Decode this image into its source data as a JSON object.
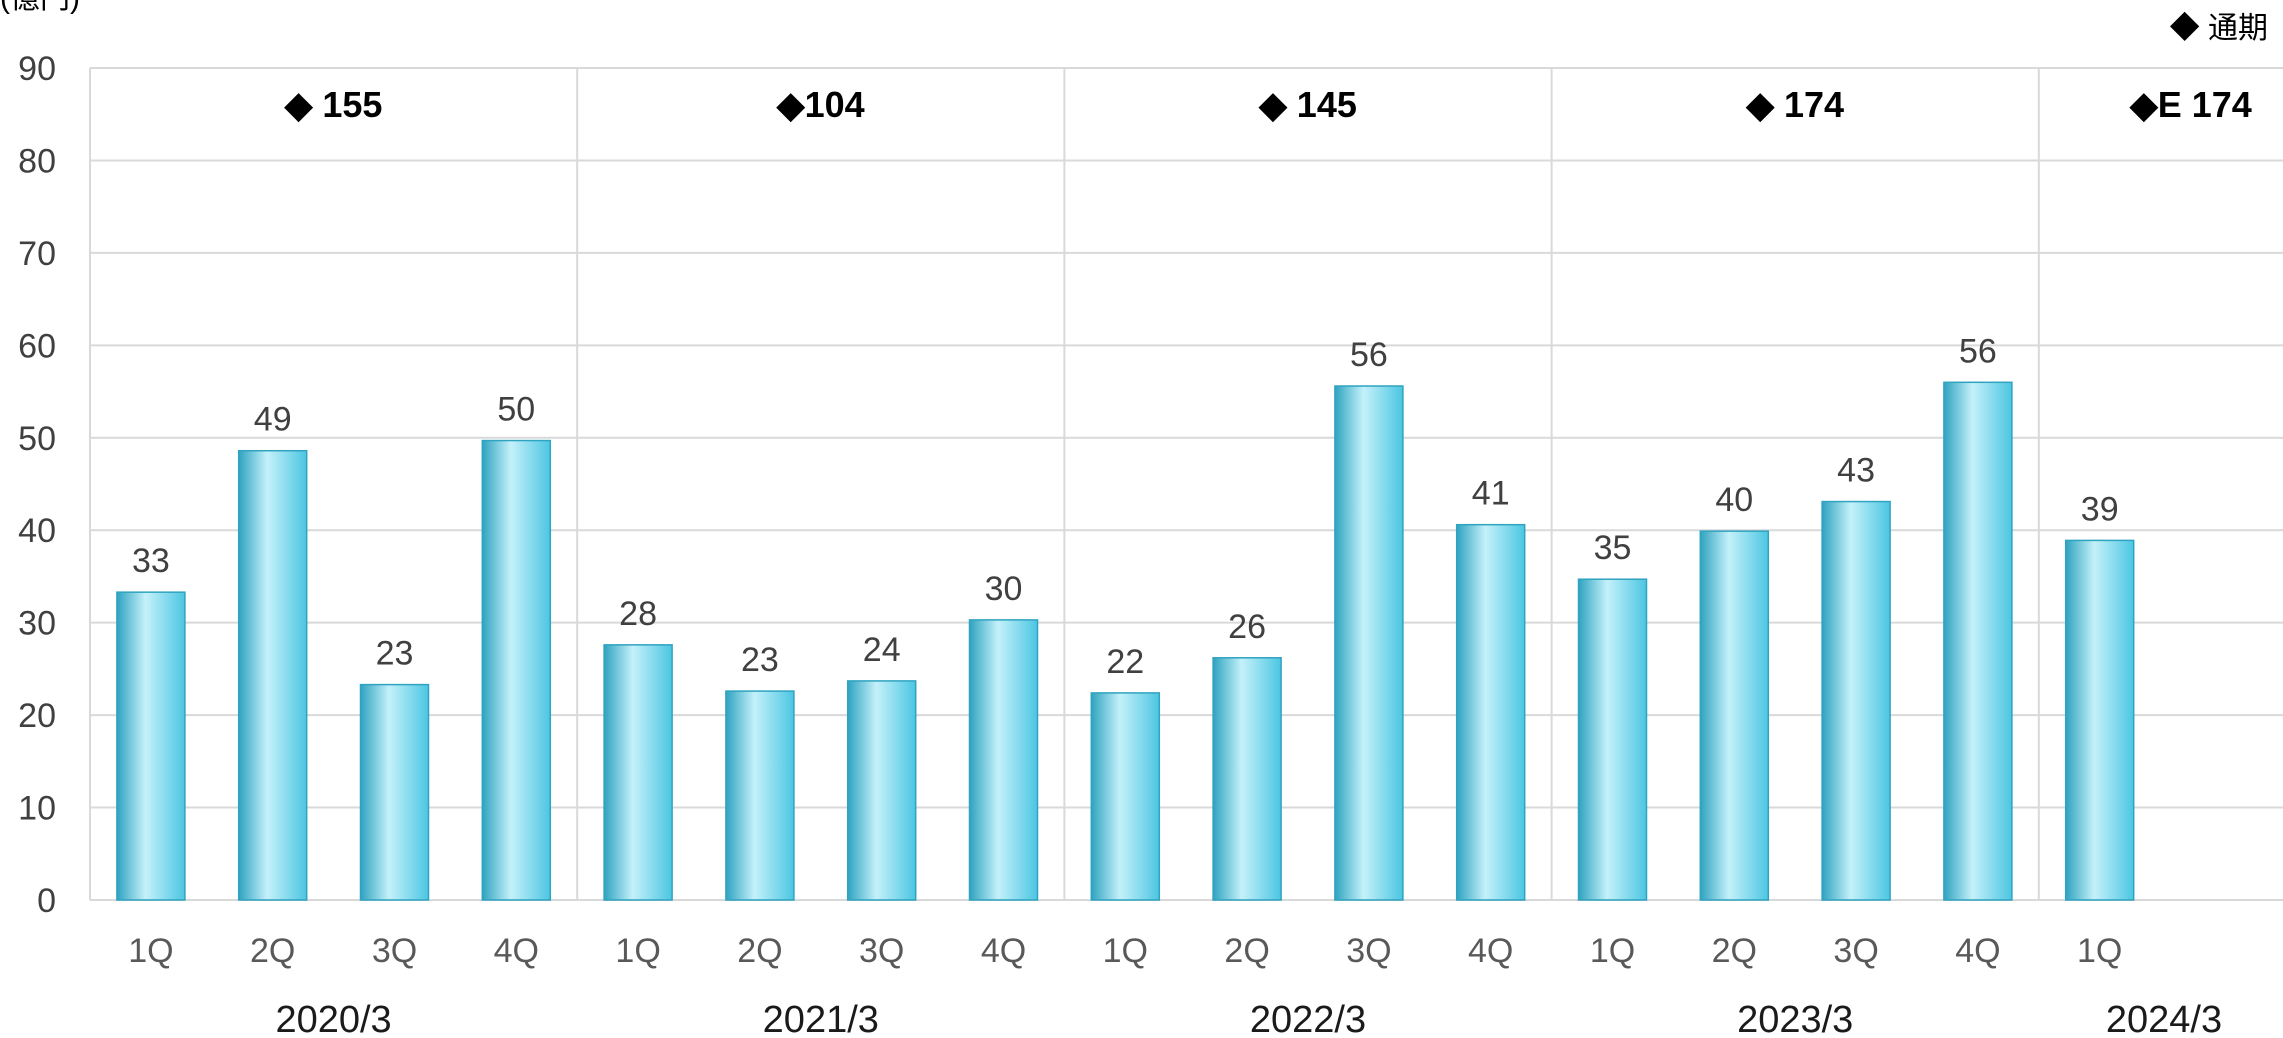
{
  "chart_data": {
    "type": "bar",
    "unit_label": "(億円)",
    "legend_label": "◆ 通期",
    "ylim": [
      0,
      90
    ],
    "yticks": [
      0,
      10,
      20,
      30,
      40,
      50,
      60,
      70,
      80,
      90
    ],
    "grid": true,
    "colors": {
      "bar": "#4cc6e2",
      "bar_light": "#c4f1fa",
      "bar_dark": "#2fa3c0",
      "grid": "#d9d9d9"
    },
    "periods": [
      {
        "label": "2020/3",
        "annual_label": "◆ 155",
        "quarters": [
          "1Q",
          "2Q",
          "3Q",
          "4Q"
        ],
        "values": [
          33.3,
          48.6,
          23.3,
          49.7
        ],
        "value_labels": [
          "33",
          "49",
          "23",
          "50"
        ]
      },
      {
        "label": "2021/3",
        "annual_label": "◆104",
        "quarters": [
          "1Q",
          "2Q",
          "3Q",
          "4Q"
        ],
        "values": [
          27.6,
          22.6,
          23.7,
          30.3
        ],
        "value_labels": [
          "28",
          "23",
          "24",
          "30"
        ]
      },
      {
        "label": "2022/3",
        "annual_label": "◆ 145",
        "quarters": [
          "1Q",
          "2Q",
          "3Q",
          "4Q"
        ],
        "values": [
          22.4,
          26.2,
          55.6,
          40.6
        ],
        "value_labels": [
          "22",
          "26",
          "56",
          "41"
        ]
      },
      {
        "label": "2023/3",
        "annual_label": "◆ 174",
        "quarters": [
          "1Q",
          "2Q",
          "3Q",
          "4Q"
        ],
        "values": [
          34.7,
          39.9,
          43.1,
          56.0
        ],
        "value_labels": [
          "35",
          "40",
          "43",
          "56"
        ]
      },
      {
        "label": "2024/3",
        "annual_label": "◆E 174",
        "quarters": [
          "1Q"
        ],
        "values": [
          38.9
        ],
        "value_labels": [
          "39"
        ]
      }
    ]
  }
}
